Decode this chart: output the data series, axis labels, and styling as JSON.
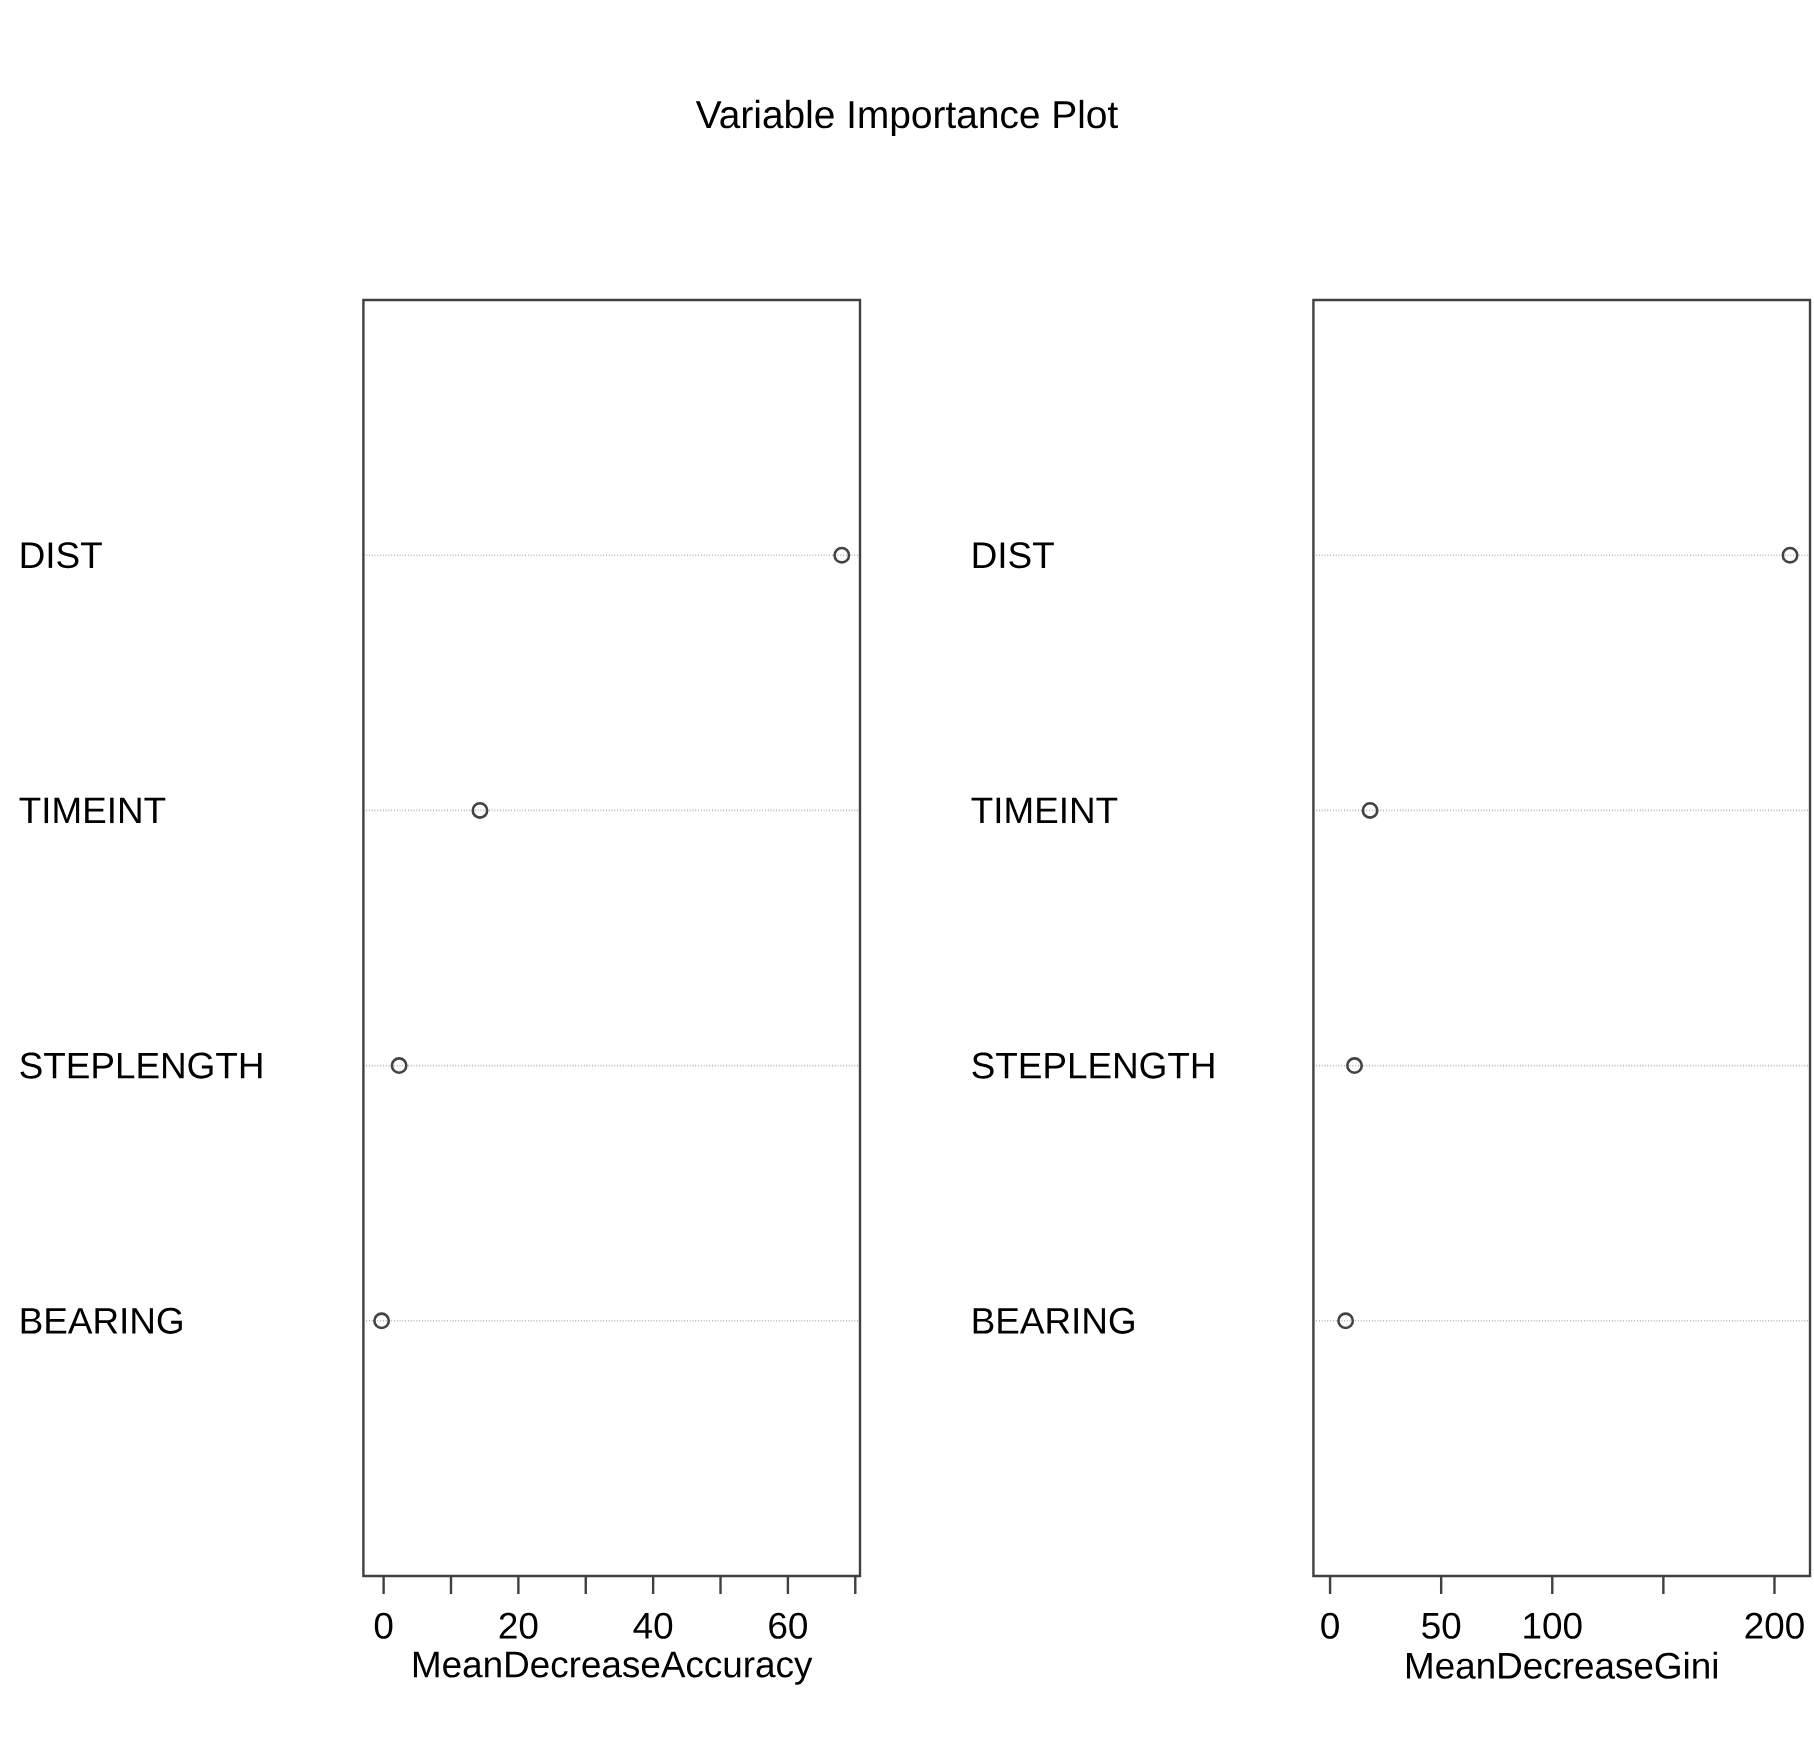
{
  "chart_data": [
    {
      "type": "scatter",
      "title": "Variable Importance Plot",
      "xlabel": "MeanDecreaseAccuracy",
      "categories": [
        "DIST",
        "TIMEINT",
        "STEPLENGTH",
        "BEARING"
      ],
      "values": [
        68,
        14.3,
        2.3,
        -0.3
      ],
      "color": "#444444",
      "marker": "circle",
      "grid": "y",
      "orientation": "horizontal",
      "xlim": [
        -3,
        70.7
      ],
      "xticks": [
        0,
        {
          "value": 10,
          "label": null
        },
        20,
        {
          "value": 30,
          "label": null
        },
        40,
        {
          "value": 50,
          "label": null
        },
        60,
        {
          "value": 70,
          "label": null
        }
      ]
    },
    {
      "type": "scatter",
      "xlabel": "MeanDecreaseGini",
      "categories": [
        "DIST",
        "TIMEINT",
        "STEPLENGTH",
        "BEARING"
      ],
      "values": [
        207,
        18,
        11,
        7
      ],
      "color": "#444444",
      "marker": "circle",
      "grid": "y",
      "orientation": "horizontal",
      "xlim": [
        -7.5,
        216
      ],
      "xticks": [
        0,
        50,
        100,
        {
          "value": 150,
          "label": null
        },
        200
      ]
    }
  ]
}
